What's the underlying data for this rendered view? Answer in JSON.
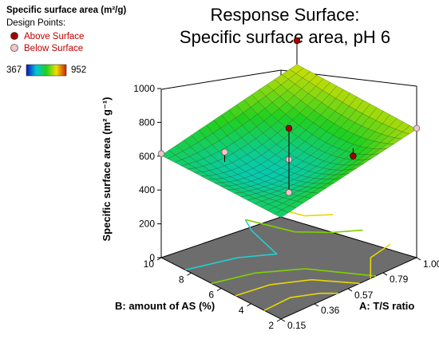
{
  "legend": {
    "title": "Specific surface area (m²/g)",
    "design_points_label": "Design Points:",
    "above_label": "Above Surface",
    "below_label": "Below Surface",
    "scale_min": "367",
    "scale_max": "952"
  },
  "colors": {
    "above_point": "#a50000",
    "below_point": "#f6c3c8",
    "floor": "#6d6d6d",
    "contour_yellow": "#e8d800",
    "contour_green": "#7fd000",
    "contour_cyan": "#1fd3d3"
  },
  "chart_data": {
    "type": "surface",
    "title_lines": [
      "Response Surface:",
      "Specific surface area, pH 6"
    ],
    "xlabel": "A: T/S ratio",
    "ylabel": "B: amount of AS (%)",
    "zlabel": "Specific surface area (m² g⁻¹)",
    "x_ticks": [
      "0.15",
      "0.36",
      "0.57",
      "0.79",
      "1.00"
    ],
    "y_ticks": [
      "2",
      "4",
      "6",
      "8",
      "10"
    ],
    "z_ticks": [
      "0",
      "200",
      "400",
      "600",
      "800",
      "1000"
    ],
    "x_range": [
      0.15,
      1.0
    ],
    "y_range": [
      2,
      10
    ],
    "z_range": [
      0,
      1000
    ],
    "color_range": [
      367,
      952
    ],
    "surface_corners": [
      {
        "x": 0.15,
        "y": 10,
        "z": 605
      },
      {
        "x": 0.15,
        "y": 2,
        "z": 600
      },
      {
        "x": 1.0,
        "y": 10,
        "z": 780
      },
      {
        "x": 1.0,
        "y": 2,
        "z": 760
      }
    ],
    "surface_center": {
      "x": 0.575,
      "y": 6,
      "z": 560
    },
    "design_points": [
      {
        "x": 0.15,
        "y": 10,
        "z": 615,
        "position": "below"
      },
      {
        "x": 0.36,
        "y": 8,
        "z": 625,
        "position": "below"
      },
      {
        "x": 0.575,
        "y": 6,
        "z": 385,
        "position": "below"
      },
      {
        "x": 0.575,
        "y": 6,
        "z": 580,
        "position": "below"
      },
      {
        "x": 0.575,
        "y": 6,
        "z": 765,
        "position": "above"
      },
      {
        "x": 0.79,
        "y": 4,
        "z": 600,
        "position": "above"
      },
      {
        "x": 1.0,
        "y": 10,
        "z": 920,
        "position": "above"
      },
      {
        "x": 1.0,
        "y": 2,
        "z": 765,
        "position": "below"
      }
    ]
  }
}
